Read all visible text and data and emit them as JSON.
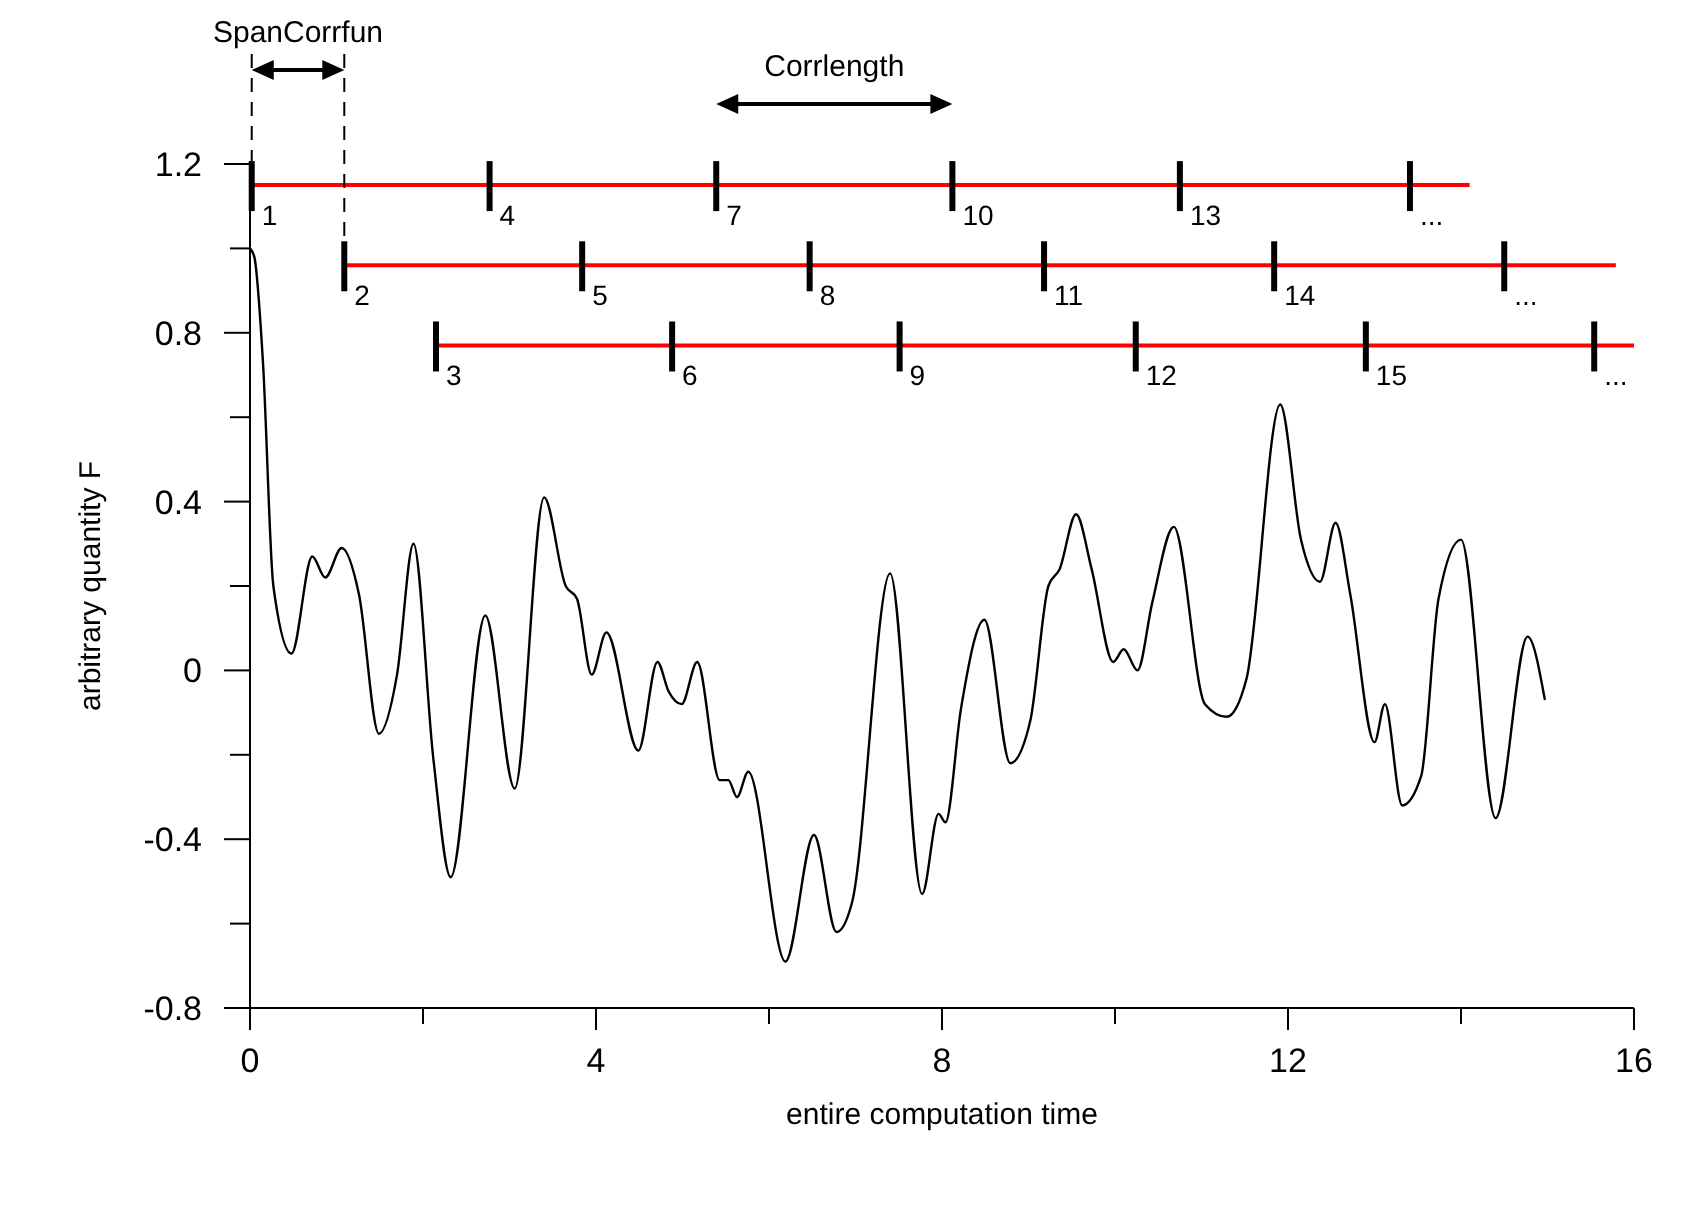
{
  "chart_data": {
    "type": "line",
    "xlabel": "entire computation time",
    "ylabel": "arbitrary quantity F",
    "xlim": [
      0,
      16
    ],
    "ylim": [
      -0.8,
      1.2
    ],
    "xticks": [
      0,
      {
        "value": 2,
        "label": null
      },
      4,
      {
        "value": 6,
        "label": null
      },
      8,
      {
        "value": 10,
        "label": null
      },
      12,
      {
        "value": 14,
        "label": null
      },
      16
    ],
    "yticks": [
      -0.8,
      {
        "value": -0.6,
        "label": null
      },
      -0.4,
      {
        "value": -0.2,
        "label": null
      },
      0,
      {
        "value": 0.2,
        "label": null
      },
      0.4,
      {
        "value": 0.6,
        "label": null
      },
      0.8,
      {
        "value": 1.0,
        "label": null
      },
      1.2
    ],
    "grid": false,
    "marker": "none",
    "line_style": "solid",
    "series": [
      {
        "color": "#000000",
        "x": [
          0,
          0.05,
          0.15,
          0.27,
          0.48,
          0.72,
          0.87,
          1.06,
          1.26,
          1.49,
          1.7,
          1.89,
          2.12,
          2.32,
          2.72,
          3.06,
          3.4,
          3.65,
          3.78,
          3.95,
          4.12,
          4.49,
          4.71,
          4.84,
          4.99,
          5.17,
          5.43,
          5.53,
          5.63,
          5.76,
          6.19,
          6.52,
          6.78,
          6.96,
          7.4,
          7.77,
          7.96,
          8.04,
          8.22,
          8.49,
          8.79,
          9.02,
          9.23,
          9.36,
          9.55,
          9.73,
          9.98,
          10.1,
          10.26,
          10.43,
          10.68,
          11.04,
          11.29,
          11.52,
          11.91,
          12.15,
          12.37,
          12.55,
          12.72,
          13.0,
          13.12,
          13.32,
          13.54,
          13.74,
          14.0,
          14.4,
          14.77,
          14.97
        ],
        "values": [
          1.0,
          0.98,
          0.73,
          0.2,
          0.04,
          0.27,
          0.22,
          0.29,
          0.18,
          -0.15,
          -0.01,
          0.3,
          -0.21,
          -0.49,
          0.13,
          -0.28,
          0.41,
          0.2,
          0.17,
          -0.01,
          0.09,
          -0.19,
          0.02,
          -0.05,
          -0.08,
          0.02,
          -0.26,
          -0.26,
          -0.3,
          -0.24,
          -0.69,
          -0.39,
          -0.62,
          -0.55,
          0.23,
          -0.53,
          -0.34,
          -0.36,
          -0.09,
          0.12,
          -0.22,
          -0.12,
          0.2,
          0.24,
          0.37,
          0.24,
          0.02,
          0.05,
          0.0,
          0.16,
          0.34,
          -0.08,
          -0.11,
          -0.02,
          0.63,
          0.31,
          0.21,
          0.35,
          0.18,
          -0.17,
          -0.08,
          -0.32,
          -0.25,
          0.17,
          0.31,
          -0.35,
          0.08,
          -0.07
        ]
      },
      {
        "color": "#ff0000",
        "x": [
          0.02,
          14.1
        ],
        "values": [
          1.15,
          1.15
        ]
      },
      {
        "color": "#ff0000",
        "x": [
          1.09,
          15.79
        ],
        "values": [
          0.96,
          0.96
        ]
      },
      {
        "color": "#ff0000",
        "x": [
          2.15,
          16
        ],
        "values": [
          0.77,
          0.77
        ]
      }
    ],
    "annotations": [
      "SpanCorrfun",
      "Corrlength",
      {
        "text": "1",
        "x": 0.02,
        "y": 1.15
      },
      {
        "text": "2",
        "x": 1.09,
        "y": 0.96
      },
      {
        "text": "3",
        "x": 2.15,
        "y": 0.77
      },
      {
        "text": "4",
        "x": 2.77,
        "y": 1.15
      },
      {
        "text": "5",
        "x": 3.84,
        "y": 0.96
      },
      {
        "text": "6",
        "x": 4.88,
        "y": 0.77
      },
      {
        "text": "7",
        "x": 5.39,
        "y": 1.15
      },
      {
        "text": "8",
        "x": 6.47,
        "y": 0.96
      },
      {
        "text": "9",
        "x": 7.51,
        "y": 0.77
      },
      {
        "text": "10",
        "x": 8.12,
        "y": 1.15
      },
      {
        "text": "11",
        "x": 9.18,
        "y": 0.96
      },
      {
        "text": "12",
        "x": 10.24,
        "y": 0.77
      },
      {
        "text": "13",
        "x": 10.75,
        "y": 1.15
      },
      {
        "text": "14",
        "x": 11.84,
        "y": 0.96
      },
      {
        "text": "15",
        "x": 12.9,
        "y": 0.77
      },
      {
        "text": "...",
        "x": 13.41,
        "y": 1.15
      },
      {
        "text": "...",
        "x": 14.5,
        "y": 0.96
      },
      {
        "text": "...",
        "x": 15.54,
        "y": 0.77
      }
    ]
  }
}
